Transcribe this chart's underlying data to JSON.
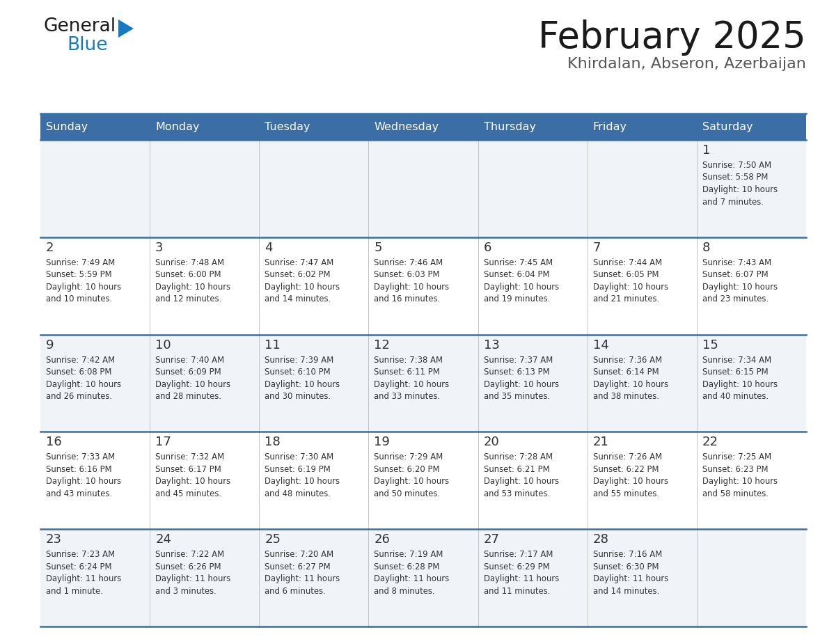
{
  "title": "February 2025",
  "subtitle": "Khirdalan, Abseron, Azerbaijan",
  "days_of_week": [
    "Sunday",
    "Monday",
    "Tuesday",
    "Wednesday",
    "Thursday",
    "Friday",
    "Saturday"
  ],
  "header_bg": "#3a6ea5",
  "header_text": "#ffffff",
  "row_bg_even": "#f0f4f8",
  "row_bg_odd": "#ffffff",
  "separator_color": "#3a6ea5",
  "text_color": "#333333",
  "title_color": "#1a1a1a",
  "subtitle_color": "#555555",
  "logo_general_color": "#1a1a1a",
  "logo_blue_color": "#1a7abf",
  "calendar_data": [
    [
      {
        "day": null,
        "info": ""
      },
      {
        "day": null,
        "info": ""
      },
      {
        "day": null,
        "info": ""
      },
      {
        "day": null,
        "info": ""
      },
      {
        "day": null,
        "info": ""
      },
      {
        "day": null,
        "info": ""
      },
      {
        "day": 1,
        "info": "Sunrise: 7:50 AM\nSunset: 5:58 PM\nDaylight: 10 hours\nand 7 minutes."
      }
    ],
    [
      {
        "day": 2,
        "info": "Sunrise: 7:49 AM\nSunset: 5:59 PM\nDaylight: 10 hours\nand 10 minutes."
      },
      {
        "day": 3,
        "info": "Sunrise: 7:48 AM\nSunset: 6:00 PM\nDaylight: 10 hours\nand 12 minutes."
      },
      {
        "day": 4,
        "info": "Sunrise: 7:47 AM\nSunset: 6:02 PM\nDaylight: 10 hours\nand 14 minutes."
      },
      {
        "day": 5,
        "info": "Sunrise: 7:46 AM\nSunset: 6:03 PM\nDaylight: 10 hours\nand 16 minutes."
      },
      {
        "day": 6,
        "info": "Sunrise: 7:45 AM\nSunset: 6:04 PM\nDaylight: 10 hours\nand 19 minutes."
      },
      {
        "day": 7,
        "info": "Sunrise: 7:44 AM\nSunset: 6:05 PM\nDaylight: 10 hours\nand 21 minutes."
      },
      {
        "day": 8,
        "info": "Sunrise: 7:43 AM\nSunset: 6:07 PM\nDaylight: 10 hours\nand 23 minutes."
      }
    ],
    [
      {
        "day": 9,
        "info": "Sunrise: 7:42 AM\nSunset: 6:08 PM\nDaylight: 10 hours\nand 26 minutes."
      },
      {
        "day": 10,
        "info": "Sunrise: 7:40 AM\nSunset: 6:09 PM\nDaylight: 10 hours\nand 28 minutes."
      },
      {
        "day": 11,
        "info": "Sunrise: 7:39 AM\nSunset: 6:10 PM\nDaylight: 10 hours\nand 30 minutes."
      },
      {
        "day": 12,
        "info": "Sunrise: 7:38 AM\nSunset: 6:11 PM\nDaylight: 10 hours\nand 33 minutes."
      },
      {
        "day": 13,
        "info": "Sunrise: 7:37 AM\nSunset: 6:13 PM\nDaylight: 10 hours\nand 35 minutes."
      },
      {
        "day": 14,
        "info": "Sunrise: 7:36 AM\nSunset: 6:14 PM\nDaylight: 10 hours\nand 38 minutes."
      },
      {
        "day": 15,
        "info": "Sunrise: 7:34 AM\nSunset: 6:15 PM\nDaylight: 10 hours\nand 40 minutes."
      }
    ],
    [
      {
        "day": 16,
        "info": "Sunrise: 7:33 AM\nSunset: 6:16 PM\nDaylight: 10 hours\nand 43 minutes."
      },
      {
        "day": 17,
        "info": "Sunrise: 7:32 AM\nSunset: 6:17 PM\nDaylight: 10 hours\nand 45 minutes."
      },
      {
        "day": 18,
        "info": "Sunrise: 7:30 AM\nSunset: 6:19 PM\nDaylight: 10 hours\nand 48 minutes."
      },
      {
        "day": 19,
        "info": "Sunrise: 7:29 AM\nSunset: 6:20 PM\nDaylight: 10 hours\nand 50 minutes."
      },
      {
        "day": 20,
        "info": "Sunrise: 7:28 AM\nSunset: 6:21 PM\nDaylight: 10 hours\nand 53 minutes."
      },
      {
        "day": 21,
        "info": "Sunrise: 7:26 AM\nSunset: 6:22 PM\nDaylight: 10 hours\nand 55 minutes."
      },
      {
        "day": 22,
        "info": "Sunrise: 7:25 AM\nSunset: 6:23 PM\nDaylight: 10 hours\nand 58 minutes."
      }
    ],
    [
      {
        "day": 23,
        "info": "Sunrise: 7:23 AM\nSunset: 6:24 PM\nDaylight: 11 hours\nand 1 minute."
      },
      {
        "day": 24,
        "info": "Sunrise: 7:22 AM\nSunset: 6:26 PM\nDaylight: 11 hours\nand 3 minutes."
      },
      {
        "day": 25,
        "info": "Sunrise: 7:20 AM\nSunset: 6:27 PM\nDaylight: 11 hours\nand 6 minutes."
      },
      {
        "day": 26,
        "info": "Sunrise: 7:19 AM\nSunset: 6:28 PM\nDaylight: 11 hours\nand 8 minutes."
      },
      {
        "day": 27,
        "info": "Sunrise: 7:17 AM\nSunset: 6:29 PM\nDaylight: 11 hours\nand 11 minutes."
      },
      {
        "day": 28,
        "info": "Sunrise: 7:16 AM\nSunset: 6:30 PM\nDaylight: 11 hours\nand 14 minutes."
      },
      {
        "day": null,
        "info": ""
      }
    ]
  ],
  "fig_width": 11.88,
  "fig_height": 9.18,
  "dpi": 100
}
